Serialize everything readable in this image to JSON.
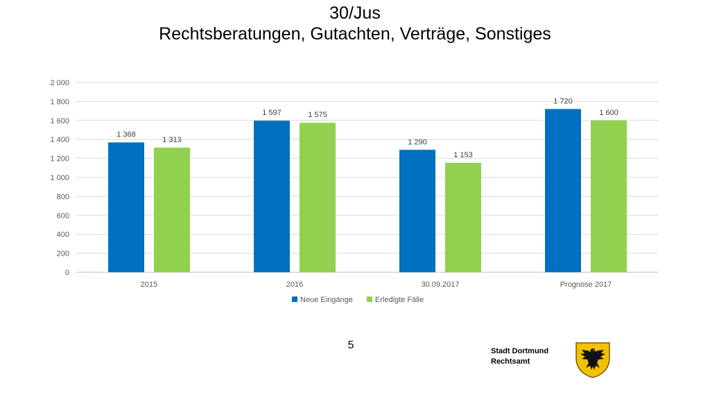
{
  "slide": {
    "title_line1": "30/Jus",
    "title_line2": "Rechtsberatungen, Gutachten, Verträge, Sonstiges",
    "page_number": "5",
    "org_line1": "Stadt Dortmund",
    "org_line2": "Rechtsamt"
  },
  "chart_data": {
    "type": "bar",
    "title": "",
    "xlabel": "",
    "ylabel": "",
    "categories": [
      "2015",
      "2016",
      "30.09.2017",
      "Prognose 2017"
    ],
    "series": [
      {
        "name": "Neue Eingänge",
        "color": "#0070C0",
        "values": [
          1368,
          1597,
          1290,
          1720
        ],
        "labels": [
          "1 368",
          "1 597",
          "1 290",
          "1 720"
        ]
      },
      {
        "name": "Erledigte Fälle",
        "color": "#92D050",
        "values": [
          1313,
          1575,
          1153,
          1600
        ],
        "labels": [
          "1 313",
          "1 575",
          "1 153",
          "1 600"
        ]
      }
    ],
    "ylim": [
      0,
      2000
    ],
    "yticks": [
      0,
      200,
      400,
      600,
      800,
      1000,
      1200,
      1400,
      1600,
      1800,
      2000
    ],
    "ytick_labels": [
      "0",
      "200",
      "400",
      "600",
      "800",
      "1 000",
      "1 200",
      "1 400",
      "1 600",
      "1 800",
      "2 000"
    ],
    "grid": true,
    "legend": "bottom-center"
  }
}
